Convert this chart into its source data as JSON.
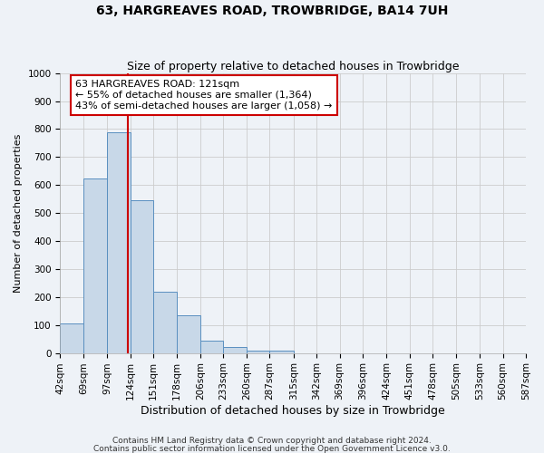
{
  "title": "63, HARGREAVES ROAD, TROWBRIDGE, BA14 7UH",
  "subtitle": "Size of property relative to detached houses in Trowbridge",
  "xlabel": "Distribution of detached houses by size in Trowbridge",
  "ylabel": "Number of detached properties",
  "bar_heights": [
    105,
    625,
    790,
    545,
    220,
    135,
    45,
    20,
    10,
    10,
    0,
    0,
    0,
    0,
    0,
    0,
    0,
    0,
    0,
    0
  ],
  "bin_labels": [
    "42sqm",
    "69sqm",
    "97sqm",
    "124sqm",
    "151sqm",
    "178sqm",
    "206sqm",
    "233sqm",
    "260sqm",
    "287sqm",
    "315sqm",
    "342sqm",
    "369sqm",
    "396sqm",
    "424sqm",
    "451sqm",
    "478sqm",
    "505sqm",
    "533sqm",
    "560sqm",
    "587sqm"
  ],
  "bin_edges": [
    42,
    69,
    97,
    124,
    151,
    178,
    206,
    233,
    260,
    287,
    315,
    342,
    369,
    396,
    424,
    451,
    478,
    505,
    533,
    560,
    587
  ],
  "bar_color": "#c8d8e8",
  "bar_edge_color": "#5a8fc0",
  "vline_x": 121,
  "vline_color": "#cc0000",
  "annotation_line1": "63 HARGREAVES ROAD: 121sqm",
  "annotation_line2": "← 55% of detached houses are smaller (1,364)",
  "annotation_line3": "43% of semi-detached houses are larger (1,058) →",
  "annotation_box_color": "#ffffff",
  "annotation_box_edge_color": "#cc0000",
  "ylim": [
    0,
    1000
  ],
  "yticks": [
    0,
    100,
    200,
    300,
    400,
    500,
    600,
    700,
    800,
    900,
    1000
  ],
  "grid_color": "#cccccc",
  "background_color": "#eef2f7",
  "footer_text1": "Contains HM Land Registry data © Crown copyright and database right 2024.",
  "footer_text2": "Contains public sector information licensed under the Open Government Licence v3.0.",
  "title_fontsize": 10,
  "subtitle_fontsize": 9,
  "xlabel_fontsize": 9,
  "ylabel_fontsize": 8,
  "tick_fontsize": 7.5,
  "annotation_fontsize": 8,
  "footer_fontsize": 6.5
}
